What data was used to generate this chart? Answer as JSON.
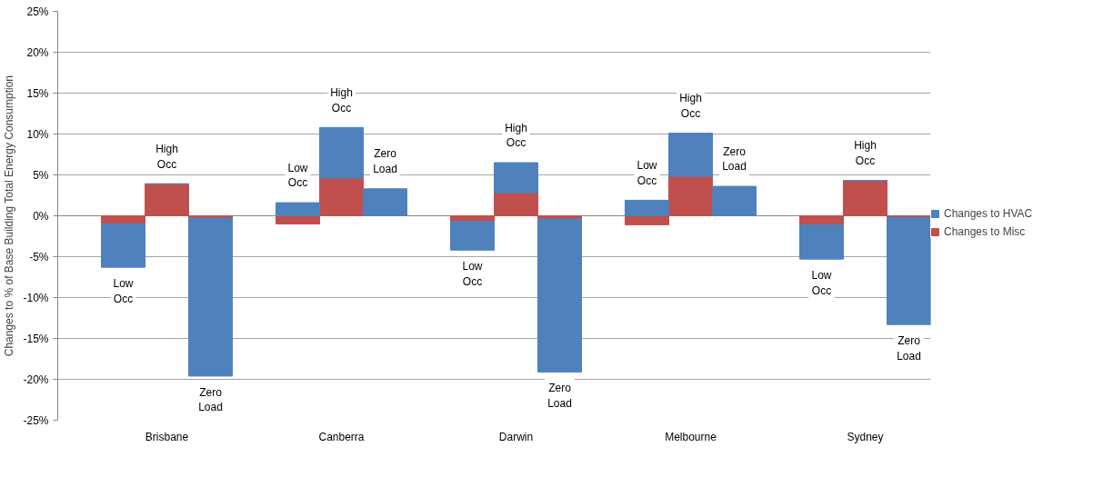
{
  "chart_data": {
    "type": "bar",
    "stacked": true,
    "ylabel": "Changes to % of Base Building Total Energy Consumption",
    "categories": [
      null,
      null,
      "Brisbane",
      null,
      null,
      null,
      "Canberra",
      null,
      null,
      null,
      "Darwin",
      null,
      null,
      null,
      "Melbourne",
      null,
      null,
      null,
      "Sydney",
      null
    ],
    "series": [
      {
        "name": "Changes to Misc",
        "color": "#c0504d",
        "values": [
          null,
          -1.0,
          3.9,
          -0.3,
          null,
          -1.0,
          4.6,
          0,
          null,
          -0.7,
          2.8,
          -0.4,
          null,
          -1.1,
          4.8,
          0,
          null,
          -1.1,
          4.3,
          -0.2
        ]
      },
      {
        "name": "Changes to HVAC",
        "color": "#4f81bd",
        "values": [
          null,
          -5.3,
          0,
          -19.3,
          null,
          1.6,
          6.2,
          3.3,
          null,
          -3.5,
          3.7,
          -18.7,
          null,
          1.9,
          5.3,
          3.6,
          null,
          -4.2,
          0,
          -13.1
        ]
      }
    ],
    "ylim": [
      -25,
      25
    ],
    "yticks": [
      {
        "value": -25,
        "label": "-25%"
      },
      {
        "value": -20,
        "label": "-20%"
      },
      {
        "value": -15,
        "label": "-15%"
      },
      {
        "value": -10,
        "label": "-10%"
      },
      {
        "value": -5,
        "label": "-5%"
      },
      {
        "value": 0,
        "label": "0%"
      },
      {
        "value": 5,
        "label": "5%"
      },
      {
        "value": 10,
        "label": "10%"
      },
      {
        "value": 15,
        "label": "15%"
      },
      {
        "value": 20,
        "label": "20%"
      },
      {
        "value": 25,
        "label": "25%"
      }
    ],
    "grid": "y",
    "legend": "right",
    "annotations": [
      "Low Occ",
      "High Occ",
      "Zero Load",
      "Low Occ",
      "High Occ",
      "Zero Load",
      "Low Occ",
      "High Occ",
      "Zero Load",
      "Low Occ",
      "High Occ",
      "Zero Load",
      "Low Occ",
      "High Occ",
      "Zero Load"
    ]
  }
}
